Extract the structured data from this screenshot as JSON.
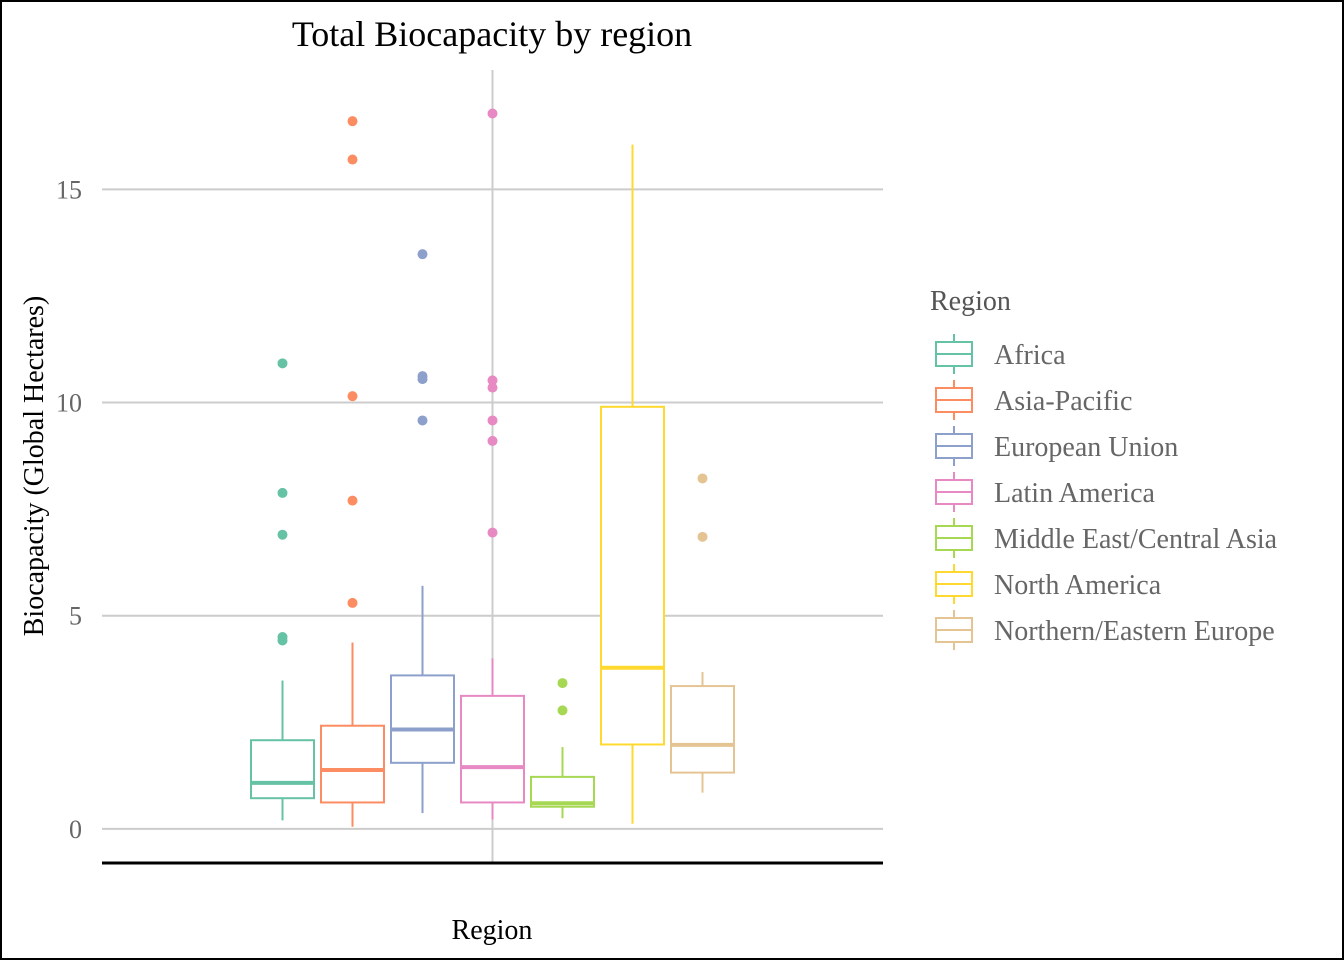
{
  "chart_data": {
    "type": "boxplot",
    "title": "Total Biocapacity by region",
    "xlabel": "Region",
    "ylabel": "Biocapacity (Global Hectares)",
    "ylim": [
      -0.8,
      17.8
    ],
    "yticks": [
      0,
      5,
      10,
      15
    ],
    "ytick_labels": [
      "0",
      "5",
      "10",
      "15"
    ],
    "grid": true,
    "legend": {
      "title": "Region",
      "position": "right"
    },
    "series": [
      {
        "name": "Africa",
        "color": "#66c2a5",
        "q1": 0.72,
        "median": 1.08,
        "q3": 2.08,
        "whisker_low": 0.2,
        "whisker_high": 3.48,
        "outliers": [
          4.42,
          4.5,
          6.9,
          7.88,
          10.92
        ]
      },
      {
        "name": "Asia-Pacific",
        "color": "#fc8d62",
        "q1": 0.62,
        "median": 1.38,
        "q3": 2.42,
        "whisker_low": 0.05,
        "whisker_high": 4.37,
        "outliers": [
          5.3,
          7.7,
          10.15,
          15.7,
          16.6
        ]
      },
      {
        "name": "European Union",
        "color": "#8da0cb",
        "q1": 1.55,
        "median": 2.33,
        "q3": 3.6,
        "whisker_low": 0.37,
        "whisker_high": 5.7,
        "outliers": [
          9.58,
          10.55,
          10.62,
          13.48
        ]
      },
      {
        "name": "Latin America",
        "color": "#e78ac3",
        "q1": 0.62,
        "median": 1.45,
        "q3": 3.12,
        "whisker_low": 0.22,
        "whisker_high": 4.0,
        "outliers": [
          6.95,
          9.1,
          9.58,
          10.35,
          10.52,
          16.78
        ]
      },
      {
        "name": "Middle East/Central Asia",
        "color": "#a6d854",
        "q1": 0.52,
        "median": 0.6,
        "q3": 1.22,
        "whisker_low": 0.25,
        "whisker_high": 1.92,
        "outliers": [
          2.78,
          3.42
        ]
      },
      {
        "name": "North America",
        "color": "#ffd92f",
        "q1": 1.98,
        "median": 3.78,
        "q3": 9.9,
        "whisker_low": 0.12,
        "whisker_high": 16.05,
        "outliers": []
      },
      {
        "name": "Northern/Eastern Europe",
        "color": "#e5c494",
        "q1": 1.32,
        "median": 1.97,
        "q3": 3.35,
        "whisker_low": 0.85,
        "whisker_high": 3.68,
        "outliers": [
          6.85,
          8.22
        ]
      }
    ]
  }
}
